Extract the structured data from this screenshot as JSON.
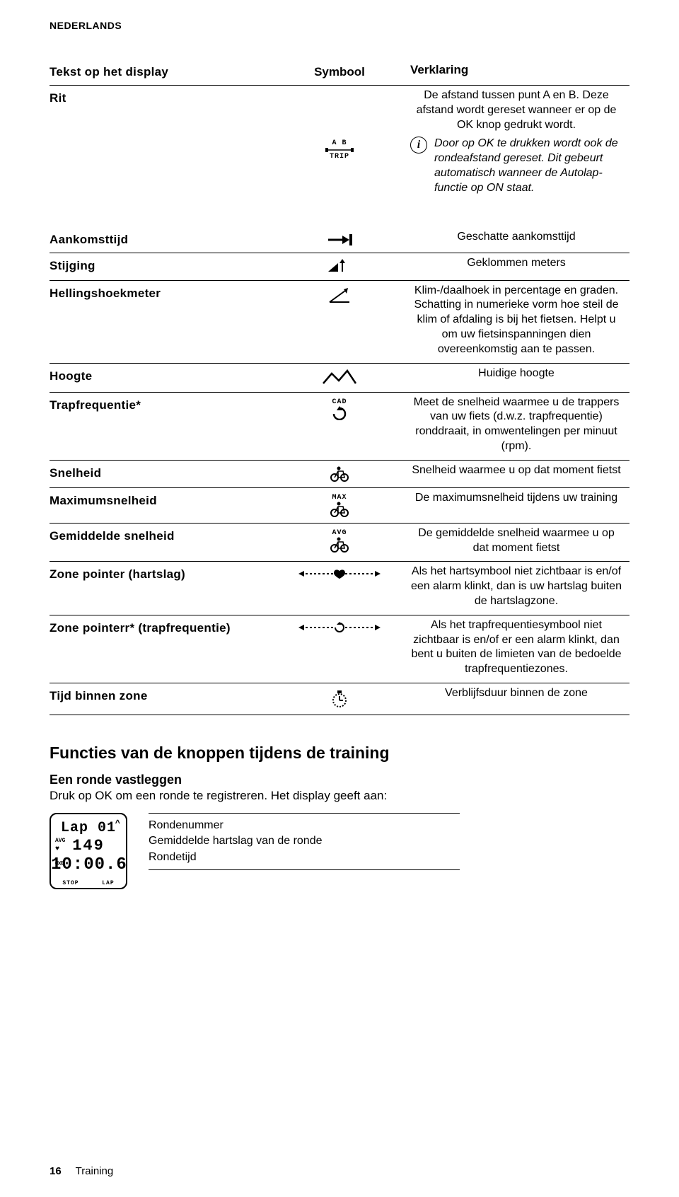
{
  "lang": "NEDERLANDS",
  "header": {
    "c1": "Tekst op het display",
    "c2": "Symbool",
    "c3": "Verklaring"
  },
  "rit": {
    "label": "Rit",
    "desc1": "De afstand tussen punt A en B. Deze afstand wordt gereset wanneer er op de OK knop gedrukt wordt.",
    "desc2": "Door op OK te drukken wordt ook de rondeafstand gereset. Dit gebeurt automatisch wanneer de Autolap-functie op ON staat.",
    "sym_top": "A   B",
    "sym_bot": "TRIP"
  },
  "rows": [
    {
      "label": "Aankomsttijd",
      "desc": "Geschatte aankomsttijd",
      "icon": "arrow-flag"
    },
    {
      "label": "Stijging",
      "desc": "Geklommen meters",
      "icon": "climb"
    },
    {
      "label": "Hellingshoekmeter",
      "desc": "Klim-/daalhoek in percentage en graden. Schatting in numerieke vorm hoe steil de klim of afdaling is bij het fietsen. Helpt u om uw fietsinspanningen dien overeenkomstig aan te passen.",
      "icon": "incline"
    },
    {
      "label": "Hoogte",
      "desc": "Huidige hoogte",
      "icon": "mountain"
    },
    {
      "label": "Trapfrequentie*",
      "desc": "Meet de snelheid waarmee u de trappers van uw fiets (d.w.z. trapfrequentie) ronddraait, in omwentelingen per minuut (rpm).",
      "icon": "cad"
    },
    {
      "label": "Snelheid",
      "desc": "Snelheid waarmee u op dat moment fietst",
      "icon": "bike"
    },
    {
      "label": "Maximumsnelheid",
      "desc": "De maximumsnelheid tijdens uw training",
      "icon": "max-bike"
    },
    {
      "label": "Gemiddelde snelheid",
      "desc": "De gemiddelde snelheid waarmee u op dat moment fietst",
      "icon": "avg-bike"
    },
    {
      "label": "Zone pointer (hartslag)",
      "desc": "Als het hartsymbool niet zichtbaar is en/of een alarm klinkt, dan is uw hartslag buiten de hartslagzone.",
      "icon": "zone-heart"
    },
    {
      "label": "Zone pointerr* (trapfrequentie)",
      "desc": "Als het trapfrequentiesymbool niet zichtbaar is en/of er een alarm klinkt, dan bent u buiten de limieten van de bedoelde trapfrequentiezones.",
      "icon": "zone-cad"
    },
    {
      "label": "Tijd binnen zone",
      "desc": "Verblijfsduur binnen de zone",
      "icon": "stopwatch"
    }
  ],
  "section": {
    "h2": "Functies van de knoppen tijdens de training",
    "h3": "Een ronde vastleggen",
    "body": "Druk op OK om een ronde te registreren. Het display geeft aan:"
  },
  "lap": {
    "line1": "Lap 01",
    "up": "^",
    "avg": "AVG",
    "heart": "♥",
    "line2": "149",
    "bike": "🚲",
    "line3": "10:00.6",
    "stop": "STOP",
    "laplbl": "LAP",
    "info1": "Rondenummer",
    "info2": "Gemiddelde hartslag van de ronde",
    "info3": "Rondetijd"
  },
  "footer": {
    "page": "16",
    "chapter": "Training"
  }
}
